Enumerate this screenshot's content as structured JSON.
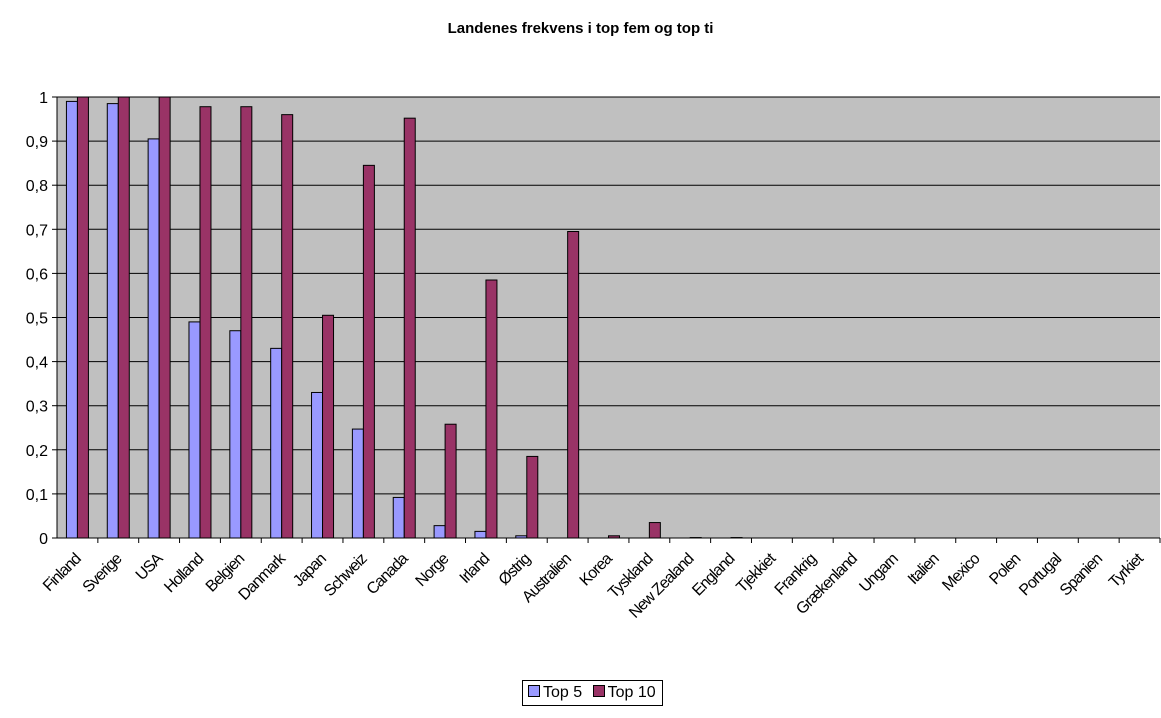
{
  "chart_data": {
    "type": "bar",
    "title": "Landenes frekvens i top fem og top ti",
    "xlabel": "",
    "ylabel": "",
    "ylim": [
      0,
      1
    ],
    "yticks": [
      "0",
      "0,1",
      "0,2",
      "0,3",
      "0,4",
      "0,5",
      "0,6",
      "0,7",
      "0,8",
      "0,9",
      "1"
    ],
    "grid": true,
    "legend_position": "bottom",
    "categories": [
      "Finland",
      "Sverige",
      "USA",
      "Holland",
      "Belgien",
      "Danmark",
      "Japan",
      "Schweiz",
      "Canada",
      "Norge",
      "Irland",
      "Østrig",
      "Australien",
      "Korea",
      "Tyskland",
      "New Zealand",
      "England",
      "Tjekkiet",
      "Frankrig",
      "Grækenland",
      "Ungarn",
      "Italien",
      "Mexico",
      "Polen",
      "Portugal",
      "Spanien",
      "Tyrkiet"
    ],
    "series": [
      {
        "name": "Top 5",
        "color": "#9999FF",
        "values": [
          0.99,
          0.985,
          0.905,
          0.49,
          0.47,
          0.43,
          0.33,
          0.247,
          0.092,
          0.028,
          0.015,
          0.005,
          0,
          0,
          0,
          0,
          0,
          0,
          0,
          0,
          0,
          0,
          0,
          0,
          0,
          0,
          0
        ]
      },
      {
        "name": "Top 10",
        "color": "#993366",
        "values": [
          1.0,
          1.0,
          1.0,
          0.978,
          0.978,
          0.96,
          0.505,
          0.845,
          0.952,
          0.258,
          0.585,
          0.185,
          0.695,
          0.005,
          0.035,
          0.001,
          0.001,
          0,
          0,
          0,
          0,
          0,
          0,
          0,
          0,
          0,
          0
        ]
      }
    ],
    "plot_background": "#C0C0C0"
  }
}
